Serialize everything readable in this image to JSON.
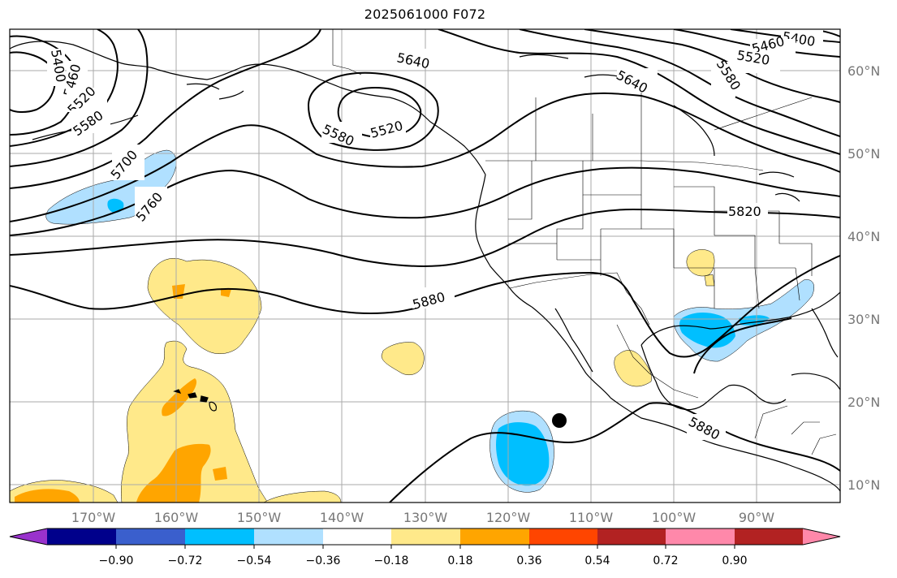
{
  "title": "2025061000 F072",
  "map": {
    "lon_labels": [
      "170°W",
      "160°W",
      "150°W",
      "140°W",
      "130°W",
      "120°W",
      "110°W",
      "100°W",
      "90°W"
    ],
    "lat_labels": [
      "60°N",
      "50°N",
      "40°N",
      "30°N",
      "20°N",
      "10°N"
    ],
    "contour_labels": [
      "5400",
      "5460",
      "5520",
      "5580",
      "5640",
      "5580",
      "5520",
      "5700",
      "5760",
      "5880",
      "5820",
      "5640",
      "5400",
      "5460",
      "5520",
      "5580",
      "5880"
    ],
    "marker": "storm-center-dot"
  },
  "colorbar": {
    "tick_labels": [
      "−0.90",
      "−0.72",
      "−0.54",
      "−0.36",
      "−0.18",
      "0.18",
      "0.36",
      "0.54",
      "0.72",
      "0.90"
    ],
    "colors": [
      "#9932cc",
      "#00008b",
      "#3a5fcd",
      "#00bfff",
      "#b0e0ff",
      "#ffffff",
      "#ffe98a",
      "#ffa500",
      "#ff4500",
      "#b22222",
      "#ff88aa"
    ]
  }
}
